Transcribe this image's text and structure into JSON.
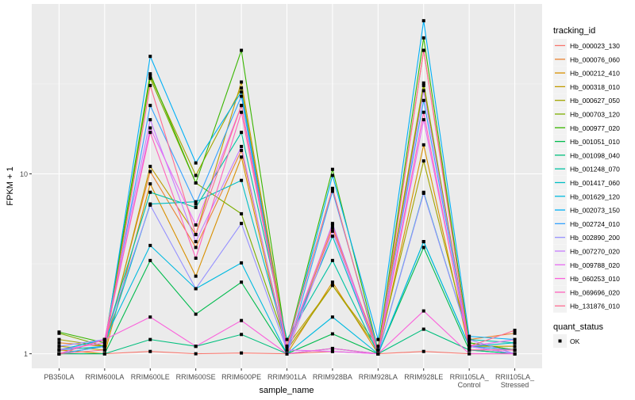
{
  "chart_data": {
    "type": "line",
    "xlabel": "sample_name",
    "ylabel": "FPKM + 1",
    "y_scale": "log10",
    "ylim": [
      0.83,
      88
    ],
    "y_ticks": [
      {
        "value": 1,
        "label": "1"
      },
      {
        "value": 10,
        "label": "10"
      }
    ],
    "grid": true,
    "background": "#EBEBEB",
    "legend_position": "right",
    "categories": [
      "PB350LA",
      "RRIM600LA",
      "RRIM600LE",
      "RRIM600SE",
      "RRIM600PE",
      "RRIM901LA",
      "RRIM928BA",
      "RRIM928LA",
      "RRIM928LE",
      "RRII105LA_Control",
      "RRII105LA_Stressed"
    ],
    "legend_color_title": "tracking_id",
    "legend_shape_title": "quant_status",
    "shape_entries": [
      {
        "label": "OK",
        "color": "#000000"
      }
    ],
    "series": [
      {
        "name": "Hb_000023_130",
        "color": "#F8766D",
        "values": [
          1.0,
          1.0,
          1.03,
          1.0,
          1.01,
          1.0,
          1.03,
          1.0,
          1.03,
          1.0,
          1.0
        ]
      },
      {
        "name": "Hb_000076_060",
        "color": "#EA8331",
        "values": [
          1.15,
          1.1,
          10.3,
          3.9,
          13.5,
          1.05,
          5.0,
          1.05,
          48.6,
          1.2,
          1.3
        ]
      },
      {
        "name": "Hb_000212_410",
        "color": "#D89000",
        "values": [
          1.05,
          1.0,
          8.8,
          2.7,
          12.4,
          1.0,
          2.5,
          1.0,
          14.5,
          1.05,
          1.05
        ]
      },
      {
        "name": "Hb_000318_010",
        "color": "#C09B00",
        "values": [
          1.1,
          1.05,
          11,
          4.6,
          32.4,
          1.1,
          2.4,
          1.1,
          32,
          1.1,
          1.1
        ]
      },
      {
        "name": "Hb_000627_050",
        "color": "#A3A500",
        "values": [
          1.2,
          1.1,
          35,
          9.8,
          30,
          1.05,
          2.4,
          1.05,
          11.8,
          1.15,
          1.05
        ]
      },
      {
        "name": "Hb_000703_120",
        "color": "#7CAE00",
        "values": [
          1.3,
          1.1,
          34,
          8.9,
          6,
          1.1,
          8.3,
          1.0,
          31,
          1.1,
          1.05
        ]
      },
      {
        "name": "Hb_000977_020",
        "color": "#39B600",
        "values": [
          1.32,
          1.15,
          36,
          8.9,
          48.6,
          1.1,
          10.6,
          1.05,
          57,
          1.15,
          1.05
        ]
      },
      {
        "name": "Hb_001051_010",
        "color": "#00BB4E",
        "values": [
          1.0,
          1.0,
          3.3,
          1.66,
          2.5,
          1.0,
          1.29,
          1.0,
          3.9,
          1.05,
          1.0
        ]
      },
      {
        "name": "Hb_001098_040",
        "color": "#00BF7D",
        "values": [
          1.0,
          1.0,
          1.2,
          1.1,
          1.28,
          1.0,
          1.07,
          1.0,
          1.37,
          1.05,
          1.0
        ]
      },
      {
        "name": "Hb_001248_070",
        "color": "#00C1A3",
        "values": [
          1.05,
          1.2,
          7.9,
          6.5,
          17,
          1.2,
          3.3,
          1.0,
          7.9,
          1.2,
          1.15
        ]
      },
      {
        "name": "Hb_001417_060",
        "color": "#00BFC4",
        "values": [
          1.05,
          1.1,
          6.8,
          7.0,
          9.2,
          1.1,
          4.5,
          1.0,
          4.2,
          1.1,
          1.15
        ]
      },
      {
        "name": "Hb_001629_120",
        "color": "#00BAE0",
        "values": [
          1.05,
          1.2,
          4.0,
          2.3,
          3.2,
          1.0,
          1.6,
          1.0,
          4.2,
          1.1,
          1.0
        ]
      },
      {
        "name": "Hb_002073_150",
        "color": "#00B0F6",
        "values": [
          1.0,
          1.1,
          45,
          11.5,
          28.5,
          1.05,
          9.8,
          1.2,
          71,
          1.25,
          1.2
        ]
      },
      {
        "name": "Hb_002724_010",
        "color": "#35A2FF",
        "values": [
          1.0,
          1.1,
          24,
          6.8,
          27,
          1.0,
          8.0,
          1.05,
          25.6,
          1.1,
          1.05
        ]
      },
      {
        "name": "Hb_002890_200",
        "color": "#9590FF",
        "values": [
          1.1,
          1.2,
          6.7,
          2.3,
          5.3,
          1.05,
          5.3,
          1.0,
          7.8,
          1.2,
          1.0
        ]
      },
      {
        "name": "Hb_007270_020",
        "color": "#C77CFF",
        "values": [
          1.0,
          1.2,
          20,
          4.2,
          14.2,
          1.0,
          4.8,
          1.0,
          29,
          1.1,
          1.0
        ]
      },
      {
        "name": "Hb_009788_020",
        "color": "#E76BF3",
        "values": [
          1.05,
          1.15,
          18,
          5.2,
          24,
          1.05,
          1.03,
          1.0,
          20,
          1.1,
          1.2
        ]
      },
      {
        "name": "Hb_060253_010",
        "color": "#FA62DB",
        "values": [
          1.0,
          1.2,
          1.6,
          1.1,
          1.53,
          1.0,
          1.07,
          1.0,
          1.73,
          1.0,
          1.0
        ]
      },
      {
        "name": "Hb_069696_020",
        "color": "#FF62BC",
        "values": [
          1.0,
          1.2,
          17,
          3.4,
          22,
          1.1,
          5.2,
          1.0,
          22,
          1.05,
          1.05
        ]
      },
      {
        "name": "Hb_131876_010",
        "color": "#FF6C91",
        "values": [
          1.0,
          1.05,
          31,
          4.6,
          24,
          1.1,
          8.3,
          1.0,
          48.6,
          1.1,
          1.35
        ]
      }
    ]
  }
}
